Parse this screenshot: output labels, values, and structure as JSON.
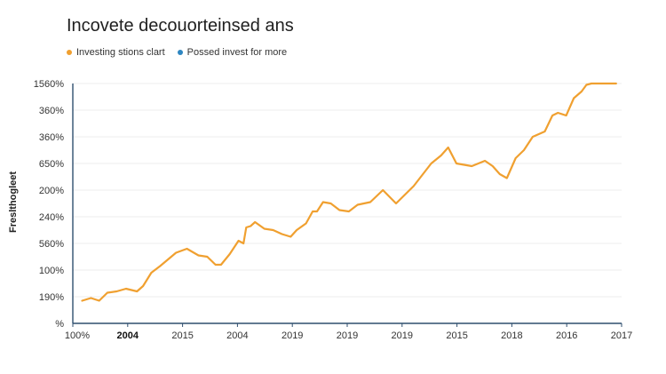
{
  "chart_data": {
    "type": "line",
    "title": "Incovete decouorteinsed ans",
    "ylabel": "Freslthogleet",
    "xlabel": "",
    "legend": [
      {
        "name": "Investing stions clart",
        "color": "#f0a030"
      },
      {
        "name": "Possed invest for more",
        "color": "#2e86c1"
      }
    ],
    "legend_placement": "top-left",
    "grid": true,
    "y_ticks": [
      "%",
      "190%",
      "100%",
      "560%",
      "240%",
      "200%",
      "650%",
      "360%",
      "360%",
      "1560%"
    ],
    "x_ticks": [
      "100%",
      "2004",
      "2015",
      "2004",
      "2019",
      "2019",
      "2019",
      "2015",
      "2018",
      "2016",
      "2017"
    ],
    "x_bold_tick_index": 1,
    "ylim": [
      0,
      9
    ],
    "xlim": [
      0,
      100
    ],
    "series": [
      {
        "name": "Investing stions clart",
        "color": "#f0a030",
        "x": [
          1.7,
          3.3,
          4.8,
          6.3,
          8.0,
          9.7,
          11.7,
          12.8,
          14.3,
          15.9,
          18.8,
          20.8,
          22.9,
          24.5,
          26.0,
          27.0,
          28.6,
          30.2,
          31.1,
          31.6,
          32.4,
          33.2,
          34.9,
          36.5,
          38.1,
          39.7,
          40.8,
          42.5,
          43.7,
          44.5,
          45.6,
          47.0,
          48.6,
          50.3,
          51.9,
          54.2,
          56.5,
          58.9,
          62.1,
          65.3,
          67.1,
          68.4,
          69.9,
          72.7,
          75.1,
          76.5,
          77.8,
          79.1,
          80.7,
          82.2,
          83.8,
          86.0,
          87.4,
          88.4,
          89.9,
          91.3,
          92.7,
          93.6,
          94.5,
          95.4,
          96.4,
          97.5,
          99.0
        ],
        "y": [
          0.85,
          0.95,
          0.85,
          1.15,
          1.2,
          1.3,
          1.2,
          1.4,
          1.9,
          2.15,
          2.65,
          2.8,
          2.55,
          2.5,
          2.2,
          2.2,
          2.6,
          3.1,
          3.0,
          3.6,
          3.65,
          3.8,
          3.55,
          3.5,
          3.35,
          3.25,
          3.5,
          3.75,
          4.2,
          4.2,
          4.55,
          4.5,
          4.25,
          4.2,
          4.45,
          4.55,
          5.0,
          4.5,
          5.15,
          6.0,
          6.3,
          6.6,
          6.0,
          5.9,
          6.1,
          5.9,
          5.6,
          5.45,
          6.2,
          6.5,
          7.0,
          7.2,
          7.8,
          7.9,
          7.8,
          8.45,
          8.7,
          8.95,
          9.0,
          9.0,
          9.0,
          9.0,
          9.0
        ]
      }
    ]
  }
}
